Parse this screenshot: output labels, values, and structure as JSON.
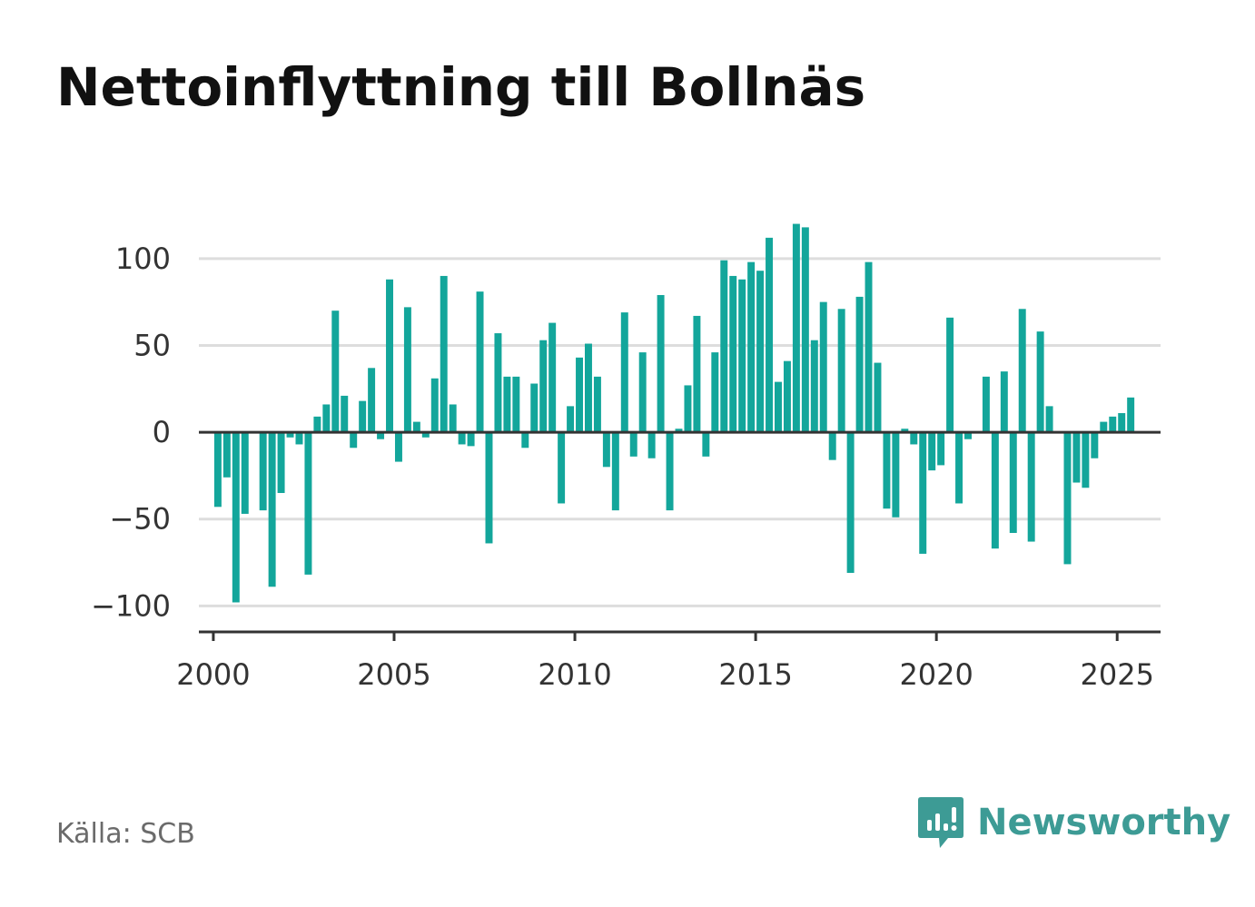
{
  "title": "Nettoinflyttning till Bollnäs",
  "source": "Källa: SCB",
  "brand": {
    "name": "Newsworthy",
    "icon": "newsworthy-logo-icon",
    "color": "#3d9b95"
  },
  "colors": {
    "bar": "#13a69b",
    "grid": "#dddddd",
    "zero_line": "#333333",
    "axis": "#333333",
    "tick_text": "#333333"
  },
  "chart_data": {
    "type": "bar",
    "title": "Nettoinflyttning till Bollnäs",
    "xlabel": "",
    "ylabel": "",
    "ylim": [
      -115,
      125
    ],
    "xlim": [
      1999.6,
      2026.2
    ],
    "grid": true,
    "legend": "none",
    "y_ticks": [
      100,
      50,
      0,
      -50,
      -100
    ],
    "y_tick_labels": [
      "100",
      "50",
      "0",
      "−50",
      "−100"
    ],
    "x_ticks": [
      2000,
      2005,
      2010,
      2015,
      2020,
      2025
    ],
    "x_tick_labels": [
      "2000",
      "2005",
      "2010",
      "2015",
      "2020",
      "2025"
    ],
    "x": [
      2000.125,
      2000.375,
      2000.625,
      2000.875,
      2001.125,
      2001.375,
      2001.625,
      2001.875,
      2002.125,
      2002.375,
      2002.625,
      2002.875,
      2003.125,
      2003.375,
      2003.625,
      2003.875,
      2004.125,
      2004.375,
      2004.625,
      2004.875,
      2005.125,
      2005.375,
      2005.625,
      2005.875,
      2006.125,
      2006.375,
      2006.625,
      2006.875,
      2007.125,
      2007.375,
      2007.625,
      2007.875,
      2008.125,
      2008.375,
      2008.625,
      2008.875,
      2009.125,
      2009.375,
      2009.625,
      2009.875,
      2010.125,
      2010.375,
      2010.625,
      2010.875,
      2011.125,
      2011.375,
      2011.625,
      2011.875,
      2012.125,
      2012.375,
      2012.625,
      2012.875,
      2013.125,
      2013.375,
      2013.625,
      2013.875,
      2014.125,
      2014.375,
      2014.625,
      2014.875,
      2015.125,
      2015.375,
      2015.625,
      2015.875,
      2016.125,
      2016.375,
      2016.625,
      2016.875,
      2017.125,
      2017.375,
      2017.625,
      2017.875,
      2018.125,
      2018.375,
      2018.625,
      2018.875,
      2019.125,
      2019.375,
      2019.625,
      2019.875,
      2020.125,
      2020.375,
      2020.625,
      2020.875,
      2021.125,
      2021.375,
      2021.625,
      2021.875,
      2022.125,
      2022.375,
      2022.625,
      2022.875,
      2023.125,
      2023.375,
      2023.625,
      2023.875,
      2024.125,
      2024.375,
      2024.625,
      2024.875,
      2025.125,
      2025.375
    ],
    "values": [
      -43,
      -26,
      -98,
      -47,
      0,
      -45,
      -89,
      -35,
      -3,
      -7,
      -82,
      9,
      16,
      70,
      21,
      -9,
      18,
      37,
      -4,
      88,
      -17,
      72,
      6,
      -3,
      31,
      90,
      16,
      -7,
      -8,
      81,
      -64,
      57,
      32,
      32,
      -9,
      28,
      53,
      63,
      -41,
      15,
      43,
      51,
      32,
      -20,
      -45,
      69,
      -14,
      46,
      -15,
      79,
      -45,
      2,
      27,
      67,
      -14,
      46,
      99,
      90,
      88,
      98,
      93,
      112,
      29,
      41,
      120,
      118,
      53,
      75,
      -16,
      71,
      -81,
      78,
      98,
      40,
      -44,
      -49,
      2,
      -7,
      -70,
      -22,
      -19,
      66,
      -41,
      -4,
      0,
      32,
      -67,
      35,
      -58,
      71,
      -63,
      58,
      15,
      0,
      -76,
      -29,
      -32,
      -15,
      6,
      9,
      11,
      20
    ]
  }
}
